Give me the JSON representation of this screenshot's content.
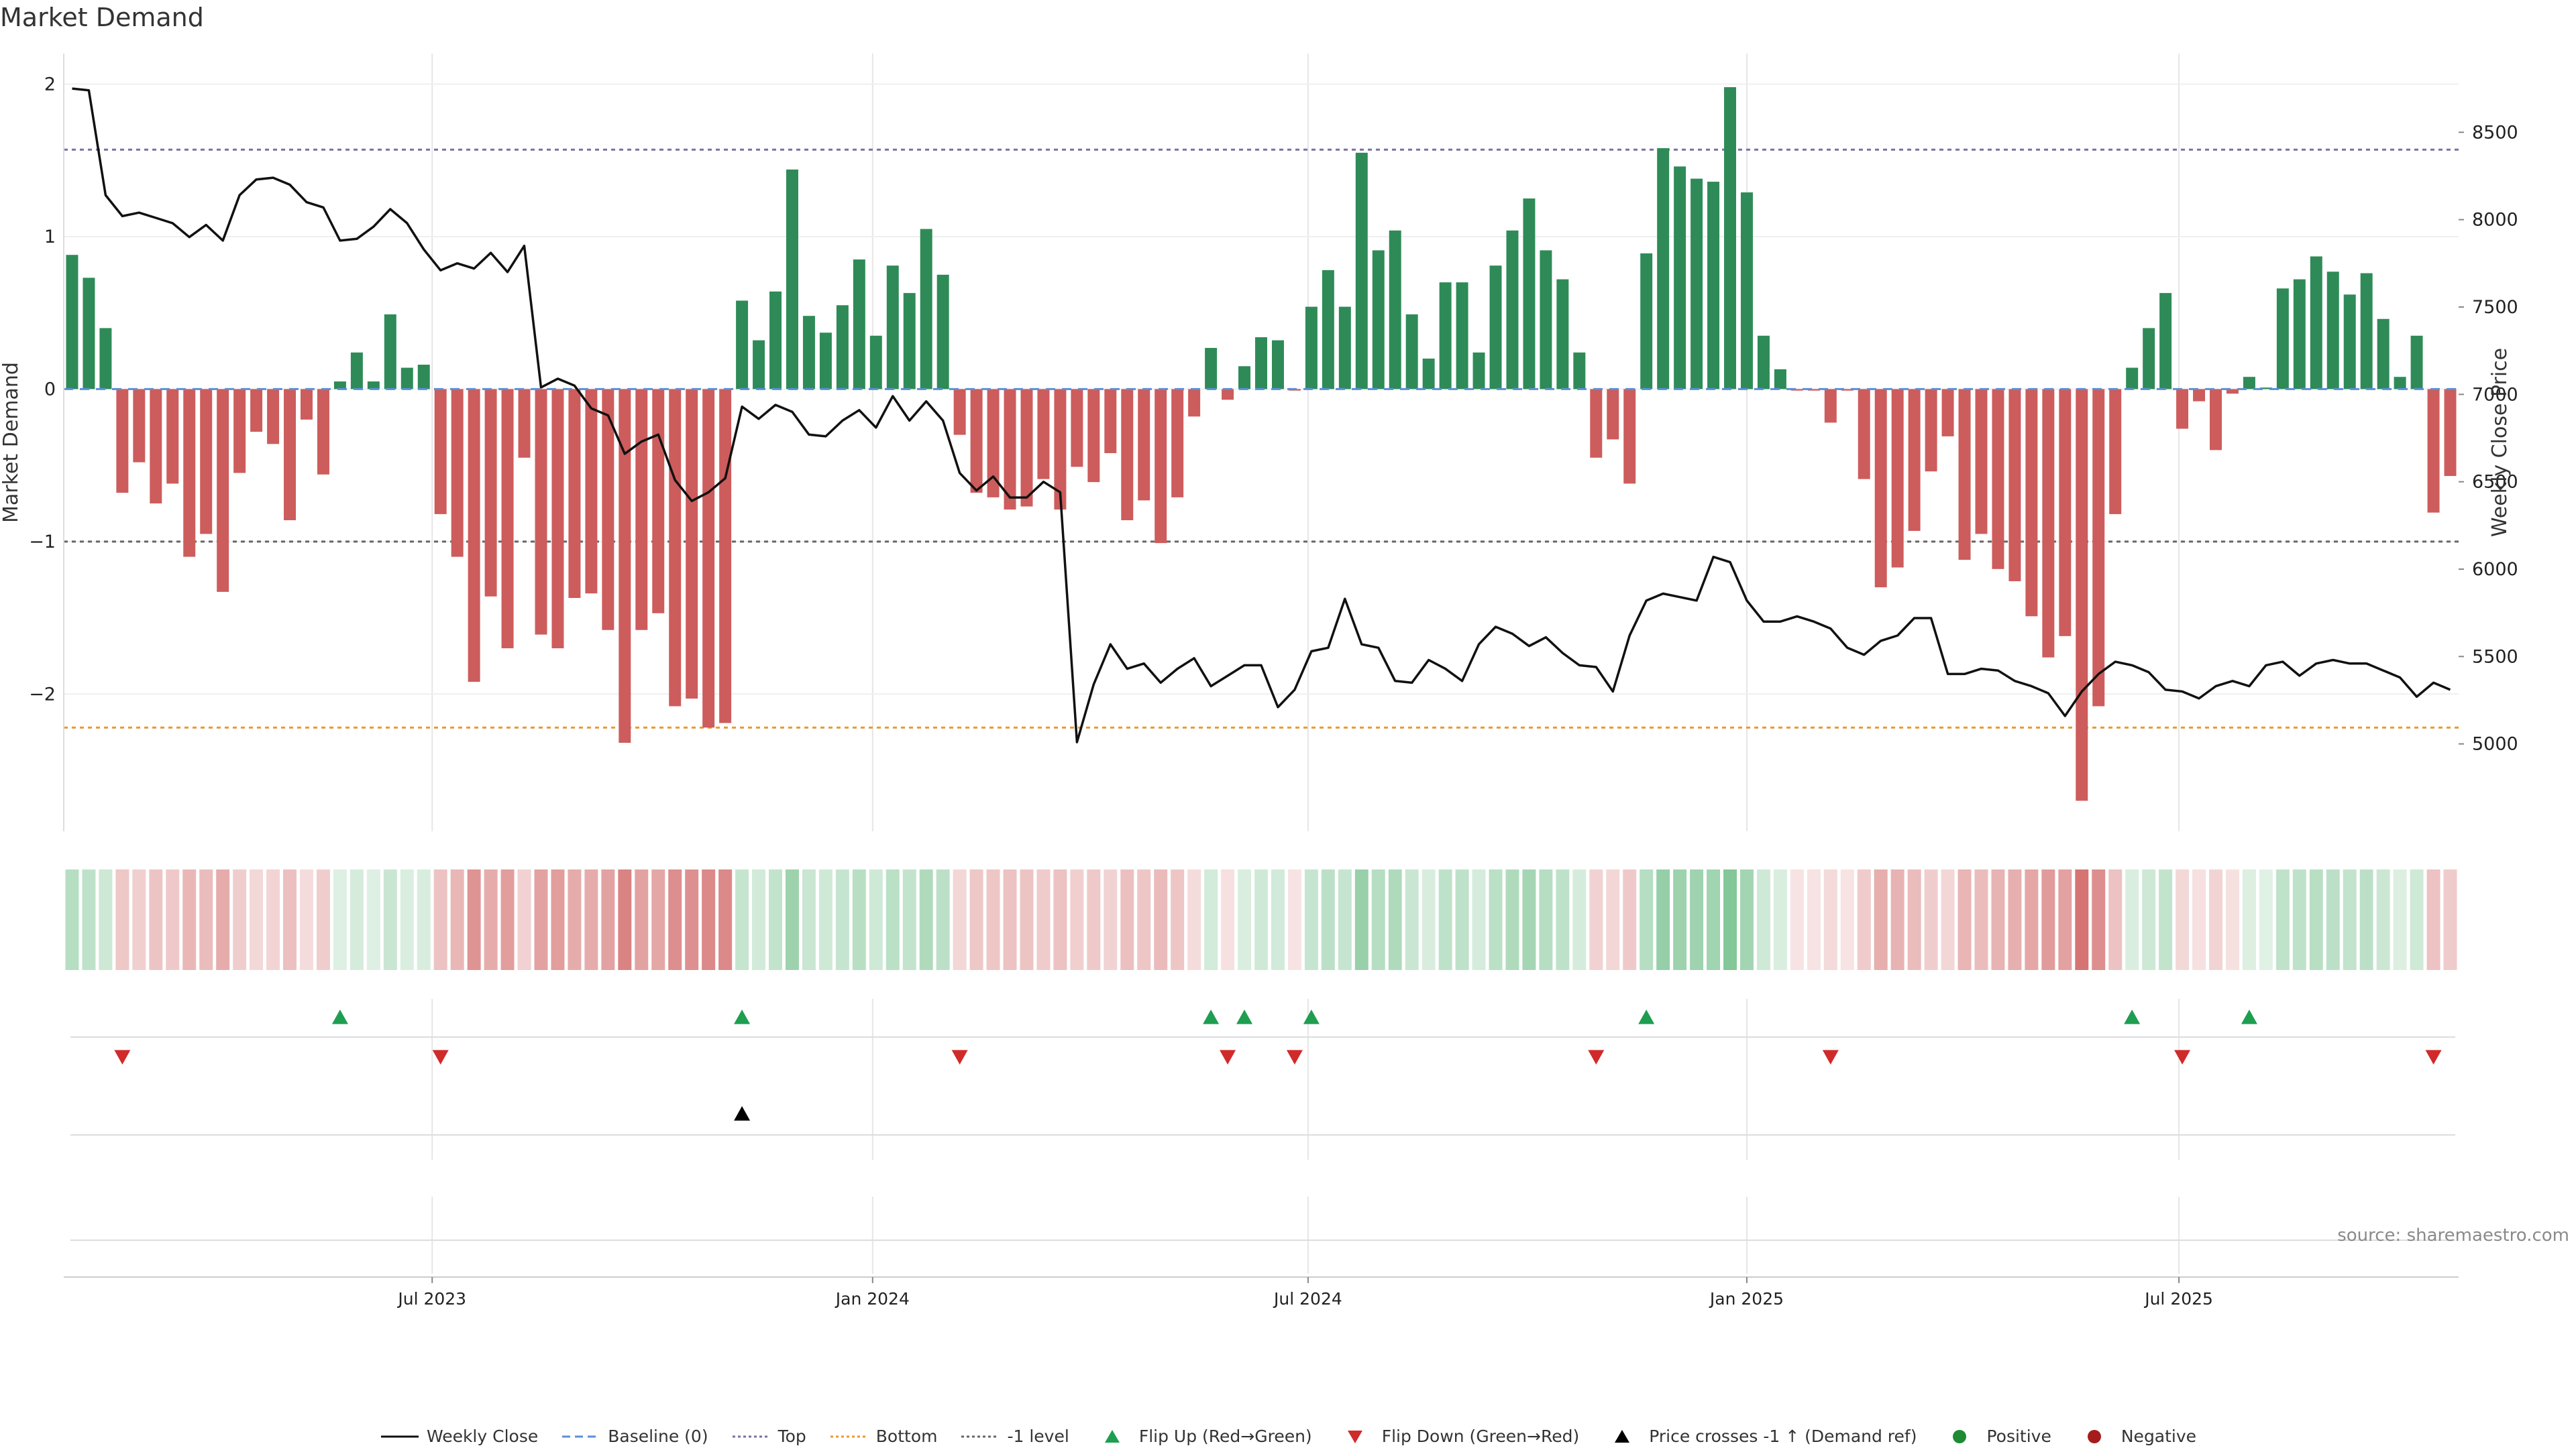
{
  "title": "Market Demand",
  "source": "source: sharemaestro.com",
  "colors": {
    "positive_bar": "#2e8b57",
    "negative_bar": "#cd5c5c",
    "price_line": "#111111",
    "baseline": "#5b8fd6",
    "top_line": "#7a6fa8",
    "bottom_line": "#e89a2e",
    "minus_one_line": "#666666",
    "flip_up": "#1e9e50",
    "flip_down": "#d02a2a",
    "cross_marker": "#000000",
    "grid": "#e6e6e6"
  },
  "chart_data": {
    "type": "bar",
    "title": "Market Demand",
    "ylabel": "Market Demand",
    "y2label": "Weekly Close Price",
    "ylim": [
      -2.9,
      2.2
    ],
    "y2lim": [
      4500,
      8950
    ],
    "yticks": [
      2,
      1,
      0,
      -1,
      -2
    ],
    "y2ticks": [
      8500,
      8000,
      7500,
      7000,
      6500,
      6000,
      5500,
      5000
    ],
    "xtick_labels": [
      "Jul 2023",
      "Jan 2024",
      "Jul 2024",
      "Jan 2025",
      "Jul 2025"
    ],
    "xtick_week_index": [
      22,
      48.3,
      74.3,
      100.5,
      126.3
    ],
    "levels": {
      "top": 1.57,
      "bottom": -2.22,
      "minus_one": -1.0,
      "baseline": 0
    },
    "demand": [
      0.88,
      0.73,
      0.4,
      -0.68,
      -0.48,
      -0.75,
      -0.62,
      -1.1,
      -0.95,
      -1.33,
      -0.55,
      -0.28,
      -0.36,
      -0.86,
      -0.2,
      -0.56,
      0.05,
      0.24,
      0.05,
      0.49,
      0.14,
      0.16,
      -0.82,
      -1.1,
      -1.92,
      -1.36,
      -1.7,
      -0.45,
      -1.61,
      -1.7,
      -1.37,
      -1.34,
      -1.58,
      -2.32,
      -1.58,
      -1.47,
      -2.08,
      -2.03,
      -2.22,
      -2.19,
      0.58,
      0.32,
      0.64,
      1.44,
      0.48,
      0.37,
      0.55,
      0.85,
      0.35,
      0.81,
      0.63,
      1.05,
      0.75,
      -0.3,
      -0.68,
      -0.71,
      -0.79,
      -0.77,
      -0.59,
      -0.79,
      -0.51,
      -0.61,
      -0.42,
      -0.86,
      -0.73,
      -1.01,
      -0.71,
      -0.18,
      0.27,
      -0.07,
      0.15,
      0.34,
      0.32,
      -0.01,
      0.54,
      0.78,
      0.54,
      1.55,
      0.91,
      1.04,
      0.49,
      0.2,
      0.7,
      0.7,
      0.24,
      0.81,
      1.04,
      1.25,
      0.91,
      0.72,
      0.24,
      -0.45,
      -0.33,
      -0.62,
      0.89,
      1.58,
      1.46,
      1.38,
      1.36,
      1.98,
      1.29,
      0.35,
      0.13,
      -0.01,
      -0.01,
      -0.22,
      -0.01,
      -0.59,
      -1.3,
      -1.17,
      -0.93,
      -0.54,
      -0.31,
      -1.12,
      -0.95,
      -1.18,
      -1.26,
      -1.49,
      -1.76,
      -1.62,
      -2.7,
      -2.08,
      -0.82,
      0.14,
      0.4,
      0.63,
      -0.26,
      -0.08,
      -0.4,
      -0.03,
      0.08,
      0.01,
      0.66,
      0.72,
      0.87,
      0.77,
      0.62,
      0.76,
      0.46,
      0.08,
      0.35,
      -0.81,
      -0.57
    ],
    "weekly_close": [
      8750,
      8740,
      8140,
      8020,
      8040,
      8010,
      7980,
      7900,
      7970,
      7880,
      8140,
      8230,
      8240,
      8200,
      8100,
      8070,
      7880,
      7890,
      7960,
      8060,
      7980,
      7830,
      7710,
      7750,
      7720,
      7810,
      7700,
      7850,
      7040,
      7090,
      7050,
      6920,
      6880,
      6660,
      6730,
      6770,
      6510,
      6390,
      6440,
      6520,
      6930,
      6860,
      6940,
      6900,
      6770,
      6760,
      6850,
      6910,
      6810,
      6990,
      6850,
      6960,
      6850,
      6550,
      6450,
      6530,
      6410,
      6410,
      6500,
      6440,
      5010,
      5340,
      5570,
      5430,
      5460,
      5350,
      5430,
      5490,
      5330,
      5390,
      5450,
      5450,
      5210,
      5310,
      5530,
      5550,
      5830,
      5570,
      5550,
      5360,
      5350,
      5480,
      5430,
      5360,
      5570,
      5670,
      5630,
      5560,
      5610,
      5520,
      5450,
      5440,
      5300,
      5620,
      5820,
      5860,
      5840,
      5820,
      6070,
      6040,
      5820,
      5700,
      5700,
      5730,
      5700,
      5660,
      5550,
      5510,
      5590,
      5620,
      5720,
      5720,
      5400,
      5400,
      5430,
      5420,
      5360,
      5330,
      5290,
      5160,
      5300,
      5400,
      5470,
      5450,
      5410,
      5310,
      5300,
      5260,
      5330,
      5360,
      5330,
      5450,
      5470,
      5390,
      5460,
      5480,
      5460,
      5460,
      5420,
      5380,
      5270,
      5350,
      5310
    ],
    "flip_up_weeks": [
      16,
      40,
      68,
      70,
      74,
      94,
      123,
      130
    ],
    "flip_down_weeks": [
      3,
      22,
      53,
      69,
      73,
      91,
      105,
      126,
      141
    ],
    "price_cross_weeks": [
      40
    ]
  },
  "legend": [
    {
      "label": "Weekly Close",
      "kind": "solid-line",
      "color": "#111111"
    },
    {
      "label": "Baseline (0)",
      "kind": "dashed-line",
      "color": "#5b8fd6"
    },
    {
      "label": "Top",
      "kind": "dotted-line",
      "color": "#7a6fa8"
    },
    {
      "label": "Bottom",
      "kind": "dotted-line",
      "color": "#e89a2e"
    },
    {
      "label": "-1 level",
      "kind": "dotted-line",
      "color": "#666666"
    },
    {
      "label": "Flip Up (Red→Green)",
      "kind": "triangle-up",
      "color": "#1e9e50"
    },
    {
      "label": "Flip Down (Green→Red)",
      "kind": "triangle-down",
      "color": "#d02a2a"
    },
    {
      "label": "Price crosses -1 ↑ (Demand ref)",
      "kind": "triangle-up",
      "color": "#000000"
    },
    {
      "label": "Positive",
      "kind": "circle",
      "color": "#1e8a34"
    },
    {
      "label": "Negative",
      "kind": "circle",
      "color": "#a61c1c"
    }
  ]
}
